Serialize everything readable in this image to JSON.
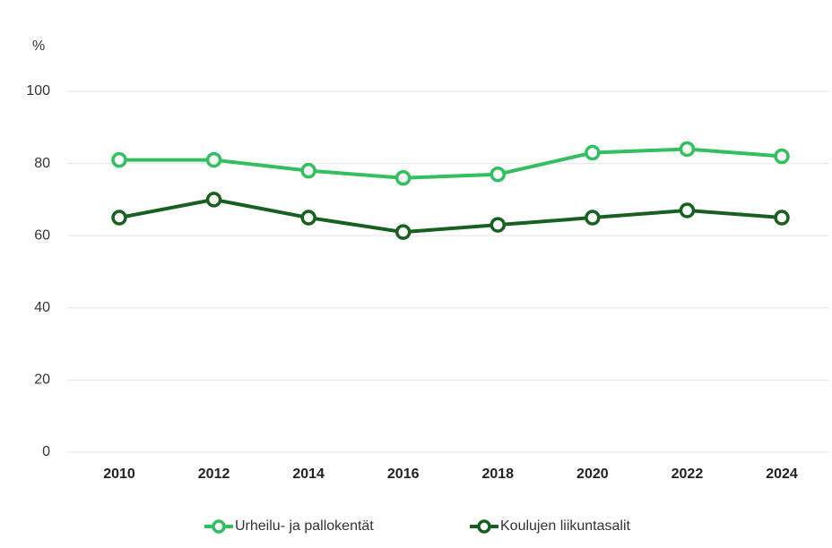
{
  "chart_data": {
    "type": "line",
    "y_label": "%",
    "categories": [
      "2010",
      "2012",
      "2014",
      "2016",
      "2018",
      "2020",
      "2022",
      "2024"
    ],
    "series": [
      {
        "name": "Urheilu- ja pallokentät",
        "color": "#33bf5f",
        "values": [
          81,
          81,
          78,
          76,
          77,
          83,
          84,
          82
        ]
      },
      {
        "name": "Koulujen liikuntasalit",
        "color": "#17601f",
        "values": [
          65,
          70,
          65,
          61,
          63,
          65,
          67,
          65
        ]
      }
    ],
    "ylim": [
      0,
      100
    ],
    "yticks": [
      0,
      20,
      40,
      60,
      80,
      100
    ],
    "grid": true,
    "legend": "bottom"
  }
}
